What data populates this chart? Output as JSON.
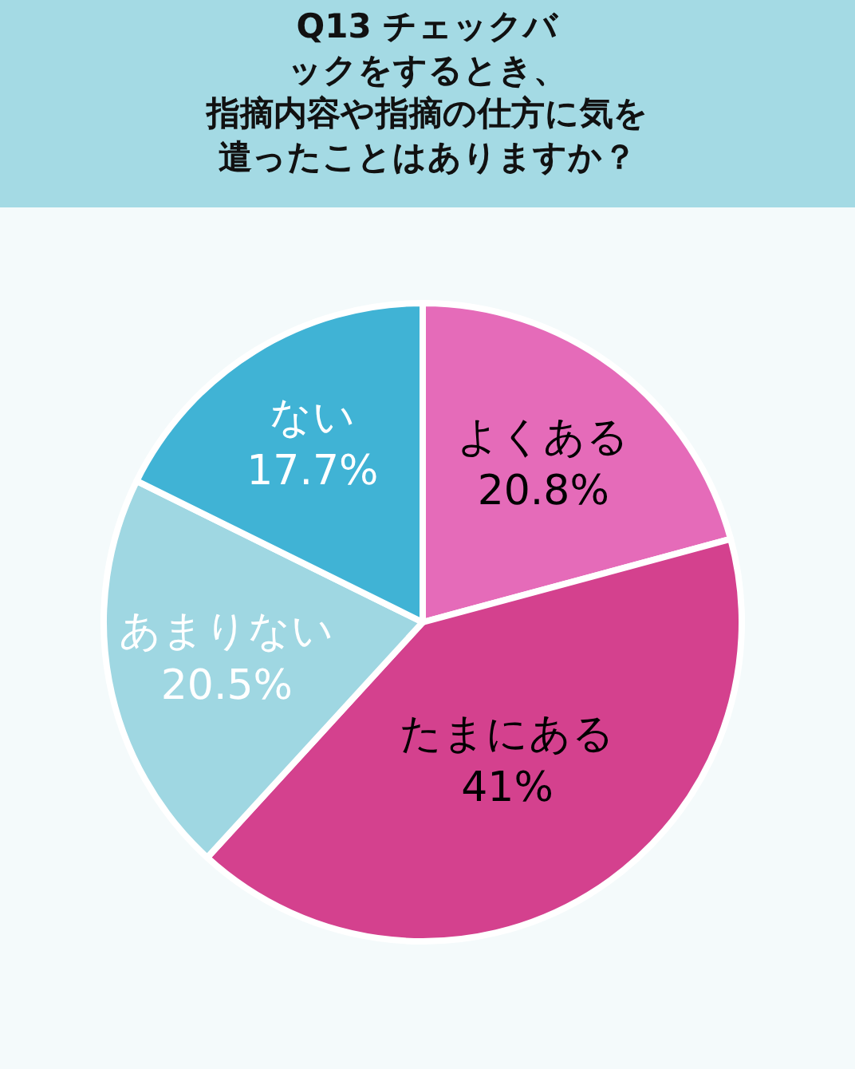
{
  "chart_data": {
    "type": "pie",
    "title": "Q13 チェックバックをするとき、指摘内容や指摘の仕方に気を遣ったことはありますか？",
    "categories": [
      "よくある",
      "たまにある",
      "あまりない",
      "ない"
    ],
    "values": [
      20.8,
      41,
      20.5,
      17.7
    ],
    "value_labels": [
      "20.8%",
      "41%",
      "20.5%",
      "17.7%"
    ],
    "colors": [
      "#e56bb9",
      "#d4418e",
      "#9fd7e2",
      "#40b3d5"
    ],
    "legend": false
  }
}
